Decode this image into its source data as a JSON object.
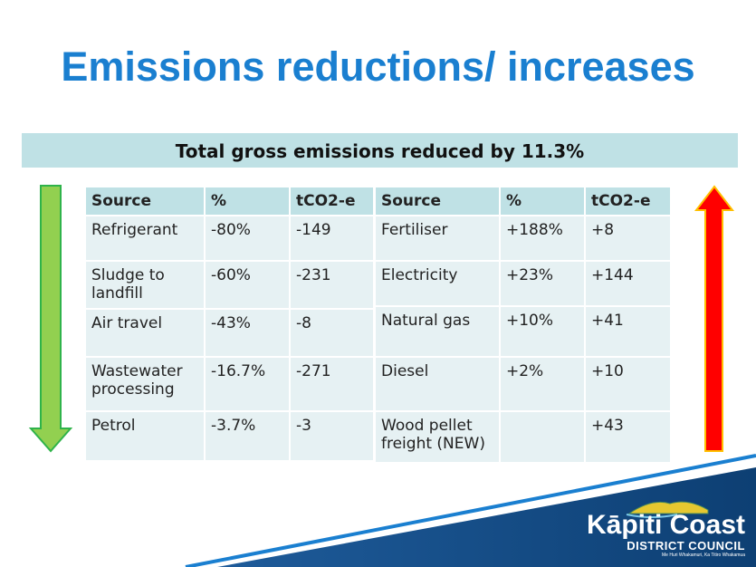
{
  "title": "Emissions reductions/ increases",
  "banner": "Total gross emissions reduced by 11.3%",
  "reductions": {
    "headers": [
      "Source",
      "%",
      "tCO2-e"
    ],
    "rows": [
      [
        "Refrigerant",
        "-80%",
        "-149"
      ],
      [
        "Sludge to landfill",
        "-60%",
        "-231"
      ],
      [
        "Air travel",
        "-43%",
        "-8"
      ],
      [
        "Wastewater processing",
        "-16.7%",
        "-271"
      ],
      [
        "Petrol",
        "-3.7%",
        "-3"
      ]
    ]
  },
  "increases": {
    "headers": [
      "Source",
      "%",
      "tCO2-e"
    ],
    "rows": [
      [
        "Fertiliser",
        "+188%",
        "+8"
      ],
      [
        "Electricity",
        "+23%",
        "+144"
      ],
      [
        "Natural gas",
        "+10%",
        "+41"
      ],
      [
        "Diesel",
        "+2%",
        "+10"
      ],
      [
        "Wood pellet freight (NEW)",
        "",
        "+43"
      ]
    ]
  },
  "colors": {
    "title": "#1a7fd0",
    "down_arrow": "#92d050",
    "up_arrow": "#ff0000",
    "footer": "#0d3f73"
  },
  "logo": {
    "name": "Kāpiti Coast",
    "sub": "DISTRICT COUNCIL",
    "tagline": "Me Huri Whakamuri, Ka Titiro Whakamua"
  }
}
